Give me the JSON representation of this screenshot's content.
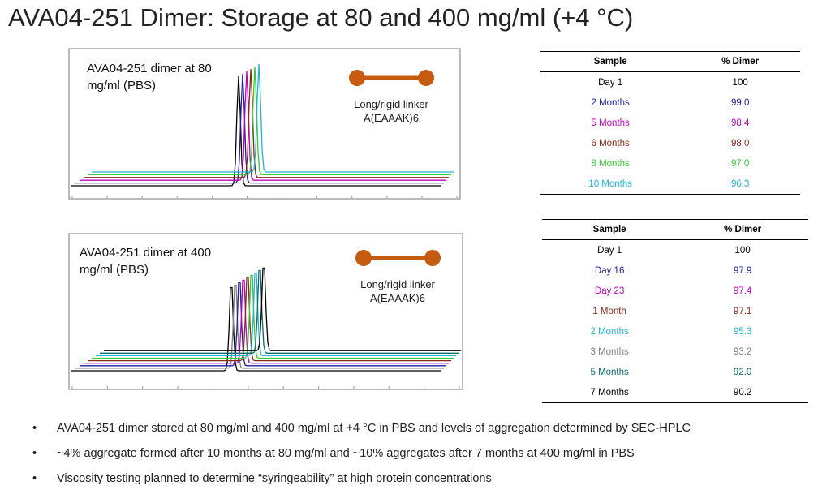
{
  "title": "AVA04-251 Dimer: Storage at 80 and 400 mg/ml (+4 °C)",
  "panels": [
    {
      "label": "AVA04-251 dimer at 80 mg/ml (PBS)",
      "linker": "Long/rigid linker A(EAAAK)6"
    },
    {
      "label": "AVA04-251 dimer at 400 mg/ml (PBS)",
      "linker": "Long/rigid linker A(EAAAK)6"
    }
  ],
  "tables": [
    {
      "columns": [
        "Sample",
        "% Dimer"
      ],
      "rows": [
        {
          "sample": "Day 1",
          "dimer": "100",
          "color": "#000000"
        },
        {
          "sample": "2 Months",
          "dimer": "99.0",
          "color": "#1f1f9f"
        },
        {
          "sample": "5 Months",
          "dimer": "98.4",
          "color": "#c000c0"
        },
        {
          "sample": "6 Months",
          "dimer": "98.0",
          "color": "#8b2a1a"
        },
        {
          "sample": "8 Months",
          "dimer": "97.0",
          "color": "#33cc33"
        },
        {
          "sample": "10 Months",
          "dimer": "96.3",
          "color": "#1fb5d6"
        }
      ]
    },
    {
      "columns": [
        "Sample",
        "% Dimer"
      ],
      "rows": [
        {
          "sample": "Day 1",
          "dimer": "100",
          "color": "#000000"
        },
        {
          "sample": "Day 16",
          "dimer": "97.9",
          "color": "#1f1f9f"
        },
        {
          "sample": "Day 23",
          "dimer": "97.4",
          "color": "#c000c0"
        },
        {
          "sample": "1 Month",
          "dimer": "97.1",
          "color": "#8b2a1a"
        },
        {
          "sample": "2 Months",
          "dimer": "95.3",
          "color": "#1fb5d6"
        },
        {
          "sample": "3 Months",
          "dimer": "93.2",
          "color": "#808080"
        },
        {
          "sample": "5 Months",
          "dimer": "92.0",
          "color": "#0e6b6b"
        },
        {
          "sample": "7 Months",
          "dimer": "90.2",
          "color": "#000000"
        }
      ]
    }
  ],
  "bullets": [
    "AVA04-251 dimer stored at 80 mg/ml and 400 mg/ml at +4 °C in PBS and levels of aggregation determined by SEC-HPLC",
    "~4% aggregate formed after 10 months at 80 mg/ml and ~10% aggregates after 7 months at 400 mg/ml in PBS",
    "Viscosity testing planned to determine “syringeability” at high protein concentrations"
  ]
}
